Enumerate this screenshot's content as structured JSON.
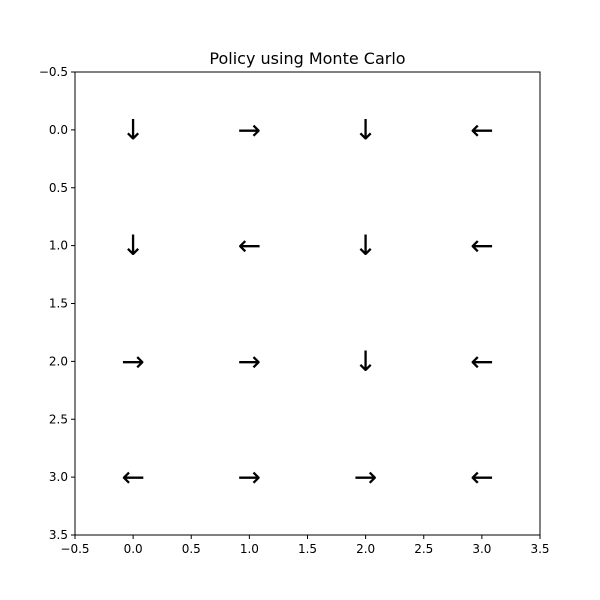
{
  "chart_data": {
    "type": "grid-policy",
    "title": "Policy using Monte Carlo",
    "xlabel": "",
    "ylabel": "",
    "xlim": [
      -0.5,
      3.5
    ],
    "ylim": [
      3.5,
      -0.5
    ],
    "y_inverted": true,
    "grid": false,
    "x_ticks": [
      "−0.5",
      "0.0",
      "0.5",
      "1.0",
      "1.5",
      "2.0",
      "2.5",
      "3.0",
      "3.5"
    ],
    "y_ticks": [
      "−0.5",
      "0.0",
      "0.5",
      "1.0",
      "1.5",
      "2.0",
      "2.5",
      "3.0",
      "3.5"
    ],
    "x_tick_values": [
      -0.5,
      0.0,
      0.5,
      1.0,
      1.5,
      2.0,
      2.5,
      3.0,
      3.5
    ],
    "y_tick_values": [
      -0.5,
      0.0,
      0.5,
      1.0,
      1.5,
      2.0,
      2.5,
      3.0,
      3.5
    ],
    "cells": [
      {
        "row": 0,
        "col": 0,
        "action": "down",
        "glyph": "↓"
      },
      {
        "row": 0,
        "col": 1,
        "action": "right",
        "glyph": "→"
      },
      {
        "row": 0,
        "col": 2,
        "action": "down",
        "glyph": "↓"
      },
      {
        "row": 0,
        "col": 3,
        "action": "left",
        "glyph": "←"
      },
      {
        "row": 1,
        "col": 0,
        "action": "down",
        "glyph": "↓"
      },
      {
        "row": 1,
        "col": 1,
        "action": "left",
        "glyph": "←"
      },
      {
        "row": 1,
        "col": 2,
        "action": "down",
        "glyph": "↓"
      },
      {
        "row": 1,
        "col": 3,
        "action": "left",
        "glyph": "←"
      },
      {
        "row": 2,
        "col": 0,
        "action": "right",
        "glyph": "→"
      },
      {
        "row": 2,
        "col": 1,
        "action": "right",
        "glyph": "→"
      },
      {
        "row": 2,
        "col": 2,
        "action": "down",
        "glyph": "↓"
      },
      {
        "row": 2,
        "col": 3,
        "action": "left",
        "glyph": "←"
      },
      {
        "row": 3,
        "col": 0,
        "action": "left",
        "glyph": "←"
      },
      {
        "row": 3,
        "col": 1,
        "action": "right",
        "glyph": "→"
      },
      {
        "row": 3,
        "col": 2,
        "action": "right",
        "glyph": "→"
      },
      {
        "row": 3,
        "col": 3,
        "action": "left",
        "glyph": "←"
      }
    ]
  }
}
